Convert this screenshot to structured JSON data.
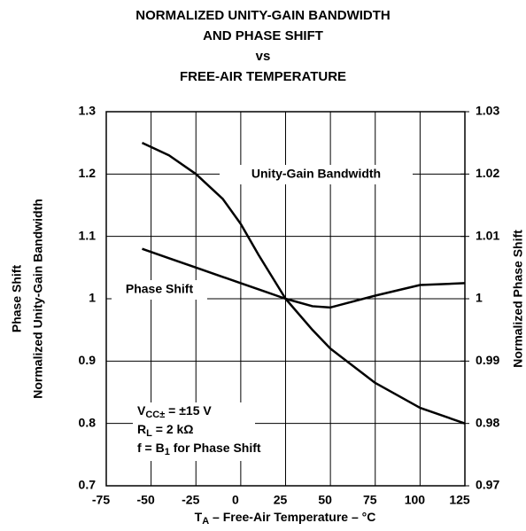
{
  "chart_data": {
    "type": "line",
    "title": [
      "NORMALIZED UNITY-GAIN BANDWIDTH",
      "AND PHASE SHIFT",
      "vs",
      "FREE-AIR TEMPERATURE"
    ],
    "x_label": [
      "T",
      "A",
      " – Free-Air Temperature – °C"
    ],
    "y_label": [
      "Phase Shift",
      "Normalized Unity-Gain Bandwidth"
    ],
    "y2_label": "Normalized Phase Shift",
    "x": [
      -55,
      -40,
      -25,
      -10,
      0,
      10,
      25,
      40,
      50,
      75,
      100,
      125
    ],
    "series": [
      {
        "name": "Unity-Gain Bandwidth",
        "color": "#000000",
        "values": [
          1.25,
          1.23,
          1.2,
          1.16,
          1.12,
          1.07,
          1.0,
          0.95,
          0.92,
          0.865,
          0.825,
          0.8
        ]
      },
      {
        "name": "Phase Shift",
        "color": "#000000",
        "axis": "y2",
        "values": [
          1.008,
          1.0065,
          1.005,
          1.0035,
          1.0025,
          1.0015,
          1.0,
          0.9988,
          0.9986,
          1.0005,
          1.0022,
          1.0025
        ]
      }
    ],
    "conditions": [
      [
        "V",
        "CC±",
        " = ±15 V"
      ],
      [
        "R",
        "L",
        " = 2 kΩ"
      ],
      [
        "f = B",
        "1",
        " for Phase Shift"
      ]
    ],
    "xlim": [
      -75,
      125
    ],
    "xticks": [
      -75,
      -50,
      -25,
      0,
      25,
      50,
      75,
      100,
      125
    ],
    "ylim": [
      0.7,
      1.3
    ],
    "yticks": [
      0.7,
      0.8,
      0.9,
      1,
      1.1,
      1.2,
      1.3
    ],
    "y2lim": [
      0.97,
      1.03
    ],
    "y2ticks": [
      0.97,
      0.98,
      0.99,
      1,
      1.01,
      1.02,
      1.03
    ],
    "grid": true
  }
}
